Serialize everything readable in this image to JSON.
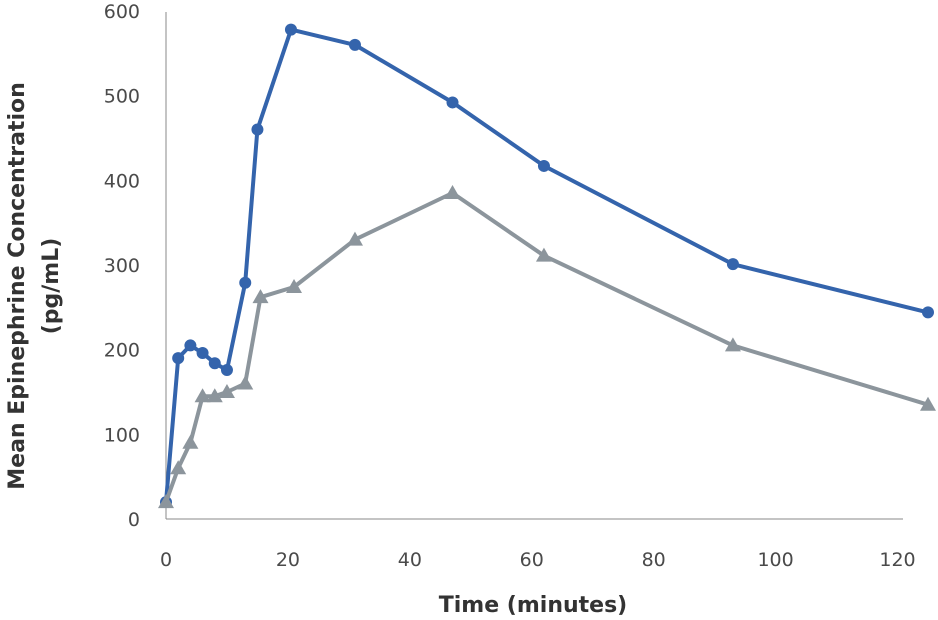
{
  "chart_data": {
    "type": "line",
    "title": "",
    "xlabel": "Time (minutes)",
    "ylabel_line1": "Mean Epinephrine Concentration",
    "ylabel_line2": "(pg/mL)",
    "xlim": [
      0,
      125
    ],
    "ylim": [
      0,
      600
    ],
    "x_ticks": [
      0,
      20,
      40,
      60,
      80,
      100,
      120
    ],
    "y_ticks": [
      0,
      100,
      200,
      300,
      400,
      500,
      600
    ],
    "grid": false,
    "legend": "none",
    "series": [
      {
        "color": "#3464ac",
        "marker": "circle",
        "x": [
          0,
          2,
          4,
          6,
          8,
          10,
          13,
          15,
          20.5,
          31,
          47,
          62,
          93,
          125
        ],
        "y": [
          20,
          190,
          205,
          196,
          184,
          176,
          279,
          460,
          578,
          560,
          492,
          417,
          301,
          244
        ]
      },
      {
        "color": "#8c959c",
        "marker": "triangle",
        "x": [
          0,
          2,
          4,
          6,
          8,
          10,
          13,
          15.5,
          21,
          31,
          47,
          62,
          93,
          125
        ],
        "y": [
          20,
          60,
          90,
          145,
          145,
          150,
          160,
          262,
          274,
          330,
          385,
          311,
          205,
          135
        ]
      }
    ]
  }
}
